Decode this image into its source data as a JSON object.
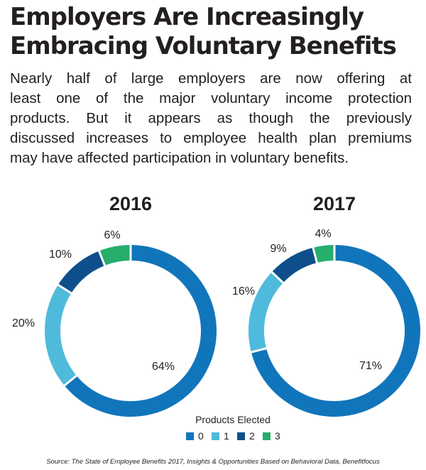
{
  "title_lines": [
    "Employers Are Increasingly",
    "Embracing Voluntary Benefits"
  ],
  "subtitle_lines": [
    "Nearly half of large employers are now offering at",
    "least one of the major voluntary income protection",
    "products. But it appears as though the previously",
    "discussed increases to employee health plan premiums",
    "may have affected participation in voluntary benefits."
  ],
  "legend": {
    "title": "Products Elected",
    "items": [
      {
        "label": "0",
        "color": "#1175bb"
      },
      {
        "label": "1",
        "color": "#4fbadb"
      },
      {
        "label": "2",
        "color": "#0e4f8b"
      },
      {
        "label": "3",
        "color": "#27ad6c"
      }
    ]
  },
  "source": "Source: The State of Employee Benefits 2017, Insights & Opportunities Based on Behavioral Data, Benefitfocus",
  "chart_data": [
    {
      "type": "pie",
      "style": "donut",
      "title": "2016",
      "categories": [
        "0",
        "1",
        "2",
        "3"
      ],
      "values": [
        64,
        20,
        10,
        6
      ],
      "labels": [
        "64%",
        "20%",
        "10%",
        "6%"
      ],
      "colors": [
        "#1175bb",
        "#4fbadb",
        "#0e4f8b",
        "#27ad6c"
      ]
    },
    {
      "type": "pie",
      "style": "donut",
      "title": "2017",
      "categories": [
        "0",
        "1",
        "2",
        "3"
      ],
      "values": [
        71,
        16,
        9,
        4
      ],
      "labels": [
        "71%",
        "16%",
        "9%",
        "4%"
      ],
      "colors": [
        "#1175bb",
        "#4fbadb",
        "#0e4f8b",
        "#27ad6c"
      ]
    }
  ]
}
